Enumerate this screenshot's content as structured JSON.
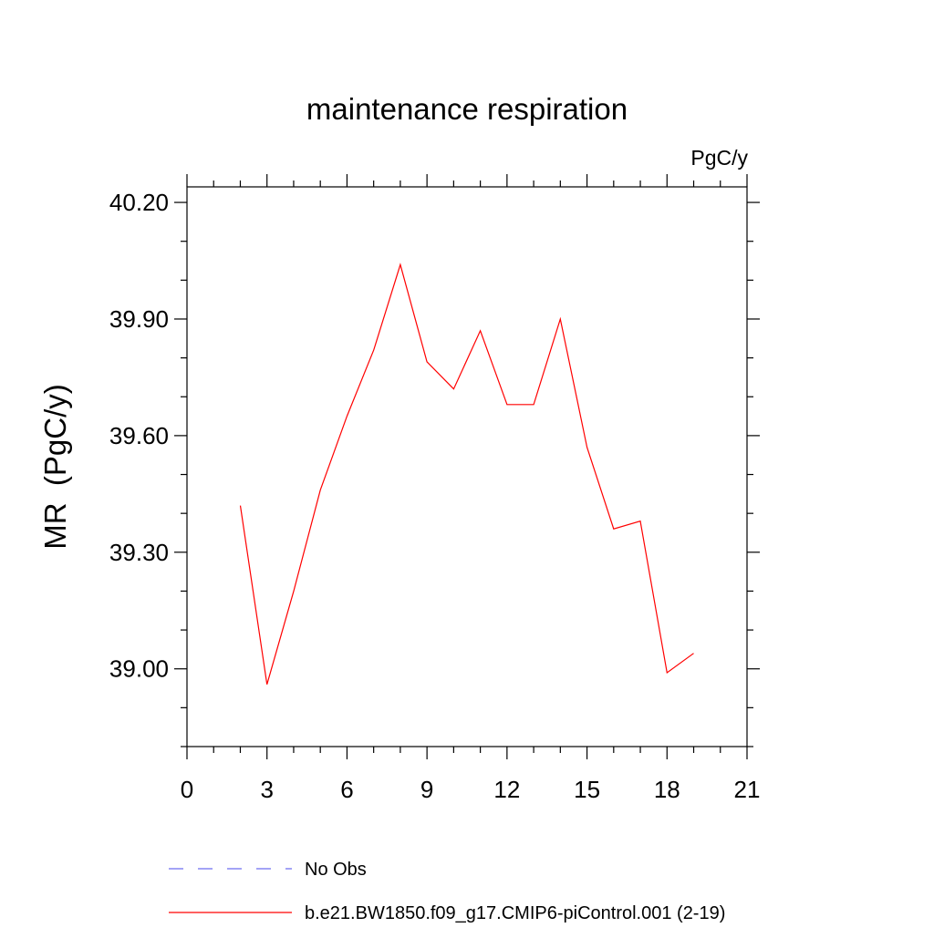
{
  "chart_data": {
    "type": "line",
    "title": "maintenance respiration",
    "units_label": "PgC/y",
    "ylabel": "MR  (PgC/y)",
    "xlabel": "",
    "xlim": [
      0,
      21
    ],
    "ylim": [
      38.8,
      40.24
    ],
    "x_ticks": [
      0,
      3,
      6,
      9,
      12,
      15,
      18,
      21
    ],
    "x_tick_labels": [
      "0",
      "3",
      "6",
      "9",
      "12",
      "15",
      "18",
      "21"
    ],
    "y_ticks": [
      39.0,
      39.3,
      39.6,
      39.9,
      40.2
    ],
    "y_tick_labels": [
      "39.00",
      "39.30",
      "39.60",
      "39.90",
      "40.20"
    ],
    "grid": false,
    "legend_position": "bottom",
    "series": [
      {
        "name": "b.e21.BW1850.f09_g17.CMIP6-piControl.001 (2-19)",
        "color": "#ff0000",
        "dash": "solid",
        "x": [
          2,
          3,
          4,
          5,
          6,
          7,
          8,
          9,
          10,
          11,
          12,
          13,
          14,
          15,
          16,
          17,
          18,
          19
        ],
        "y": [
          39.42,
          38.96,
          39.2,
          39.46,
          39.65,
          39.82,
          40.04,
          39.79,
          39.72,
          39.87,
          39.68,
          39.68,
          39.9,
          39.57,
          39.36,
          39.38,
          38.99,
          39.04
        ]
      }
    ],
    "legend": [
      {
        "label": "No Obs",
        "color": "#6e6ef0",
        "dash": "dashed"
      },
      {
        "label": "b.e21.BW1850.f09_g17.CMIP6-piControl.001 (2-19)",
        "color": "#ff0000",
        "dash": "solid"
      }
    ]
  }
}
